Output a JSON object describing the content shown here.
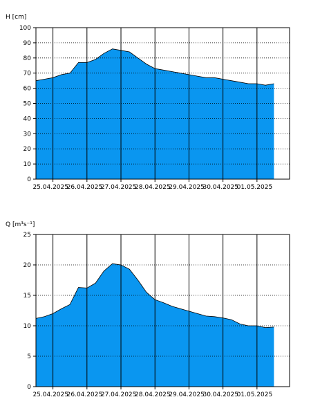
{
  "chart_data": [
    {
      "type": "area",
      "ylabel": "H [cm]",
      "ylim": [
        0,
        100
      ],
      "yticks": [
        0,
        10,
        20,
        30,
        40,
        50,
        60,
        70,
        80,
        90,
        100
      ],
      "xlim": [
        "2025-04-24T12:00",
        "2025-05-01T23:00"
      ],
      "day_lines": [
        "2025-04-25T00:00",
        "2025-04-26T00:00",
        "2025-04-27T00:00",
        "2025-04-28T00:00",
        "2025-04-29T00:00",
        "2025-04-30T00:00",
        "2025-05-01T00:00"
      ],
      "x_tick_labels": [
        "25.04.2025",
        "26.04.2025",
        "27.04.2025",
        "28.04.2025",
        "29.04.2025",
        "30.04.2025",
        "01.05.2025"
      ],
      "grid": "horizontal dotted",
      "fill_color": "#0a96f0",
      "x": [
        "2025-04-24T12:00",
        "2025-04-24T18:00",
        "2025-04-25T00:00",
        "2025-04-25T06:00",
        "2025-04-25T12:00",
        "2025-04-25T18:00",
        "2025-04-26T00:00",
        "2025-04-26T06:00",
        "2025-04-26T12:00",
        "2025-04-26T18:00",
        "2025-04-27T00:00",
        "2025-04-27T06:00",
        "2025-04-27T12:00",
        "2025-04-27T18:00",
        "2025-04-28T00:00",
        "2025-04-28T06:00",
        "2025-04-28T12:00",
        "2025-04-28T18:00",
        "2025-04-29T00:00",
        "2025-04-29T06:00",
        "2025-04-29T12:00",
        "2025-04-29T18:00",
        "2025-04-30T00:00",
        "2025-04-30T06:00",
        "2025-04-30T12:00",
        "2025-04-30T18:00",
        "2025-05-01T00:00",
        "2025-05-01T06:00",
        "2025-05-01T12:00"
      ],
      "y": [
        65,
        66,
        67,
        69,
        70,
        77,
        77,
        79,
        83,
        86,
        85,
        84,
        80,
        76,
        73,
        72,
        71,
        70,
        69,
        68,
        67,
        67,
        66,
        65,
        64,
        63,
        63,
        62,
        63
      ]
    },
    {
      "type": "area",
      "ylabel": "Q [m³s⁻¹]",
      "ylim": [
        0,
        25
      ],
      "yticks": [
        0,
        5,
        10,
        15,
        20,
        25
      ],
      "xlim": [
        "2025-04-24T12:00",
        "2025-05-01T23:00"
      ],
      "day_lines": [
        "2025-04-25T00:00",
        "2025-04-26T00:00",
        "2025-04-27T00:00",
        "2025-04-28T00:00",
        "2025-04-29T00:00",
        "2025-04-30T00:00",
        "2025-05-01T00:00"
      ],
      "x_tick_labels": [
        "25.04.2025",
        "26.04.2025",
        "27.04.2025",
        "28.04.2025",
        "29.04.2025",
        "30.04.2025",
        "01.05.2025"
      ],
      "grid": "horizontal dotted",
      "fill_color": "#0a96f0",
      "x": [
        "2025-04-24T12:00",
        "2025-04-24T18:00",
        "2025-04-25T00:00",
        "2025-04-25T06:00",
        "2025-04-25T12:00",
        "2025-04-25T18:00",
        "2025-04-26T00:00",
        "2025-04-26T06:00",
        "2025-04-26T12:00",
        "2025-04-26T18:00",
        "2025-04-27T00:00",
        "2025-04-27T06:00",
        "2025-04-27T12:00",
        "2025-04-27T18:00",
        "2025-04-28T00:00",
        "2025-04-28T06:00",
        "2025-04-28T12:00",
        "2025-04-28T18:00",
        "2025-04-29T00:00",
        "2025-04-29T06:00",
        "2025-04-29T12:00",
        "2025-04-29T18:00",
        "2025-04-30T00:00",
        "2025-04-30T06:00",
        "2025-04-30T12:00",
        "2025-04-30T18:00",
        "2025-05-01T00:00",
        "2025-05-01T06:00",
        "2025-05-01T12:00"
      ],
      "y": [
        11.2,
        11.5,
        12.0,
        12.8,
        13.5,
        16.3,
        16.2,
        17.0,
        19.0,
        20.2,
        20.0,
        19.3,
        17.5,
        15.5,
        14.3,
        13.8,
        13.2,
        12.8,
        12.4,
        12.0,
        11.6,
        11.5,
        11.3,
        11.0,
        10.3,
        10.0,
        10.0,
        9.7,
        9.8
      ]
    }
  ]
}
